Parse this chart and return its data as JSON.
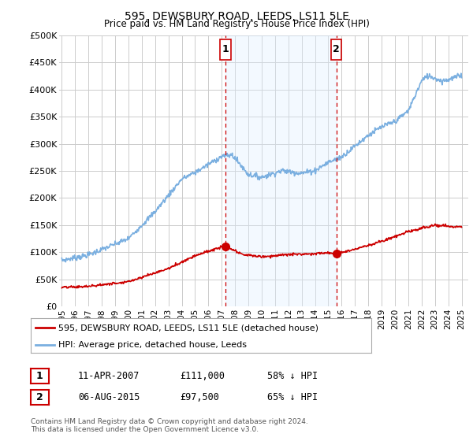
{
  "title": "595, DEWSBURY ROAD, LEEDS, LS11 5LE",
  "subtitle": "Price paid vs. HM Land Registry's House Price Index (HPI)",
  "ylabel_ticks": [
    "£500K",
    "£450K",
    "£400K",
    "£350K",
    "£300K",
    "£250K",
    "£200K",
    "£150K",
    "£100K",
    "£50K",
    "£0"
  ],
  "ytick_values": [
    500000,
    450000,
    400000,
    350000,
    300000,
    250000,
    200000,
    150000,
    100000,
    50000,
    0
  ],
  "xlim_start": 1994.8,
  "xlim_end": 2025.5,
  "ylim": [
    0,
    500000
  ],
  "legend_line1": "595, DEWSBURY ROAD, LEEDS, LS11 5LE (detached house)",
  "legend_line2": "HPI: Average price, detached house, Leeds",
  "legend_color1": "#cc0000",
  "legend_color2": "#7aafe0",
  "sale1_label": "1",
  "sale1_date": "11-APR-2007",
  "sale1_price": "£111,000",
  "sale1_pct": "58% ↓ HPI",
  "sale1_x": 2007.27,
  "sale1_y": 111000,
  "sale2_label": "2",
  "sale2_date": "06-AUG-2015",
  "sale2_price": "£97,500",
  "sale2_pct": "65% ↓ HPI",
  "sale2_x": 2015.6,
  "sale2_y": 97500,
  "footer": "Contains HM Land Registry data © Crown copyright and database right 2024.\nThis data is licensed under the Open Government Licence v3.0.",
  "bg_color": "#ffffff",
  "shade_color": "#ddeeff",
  "grid_color": "#cccccc",
  "hpi_color": "#7aafe0",
  "price_color": "#cc0000",
  "vline_color": "#cc0000"
}
